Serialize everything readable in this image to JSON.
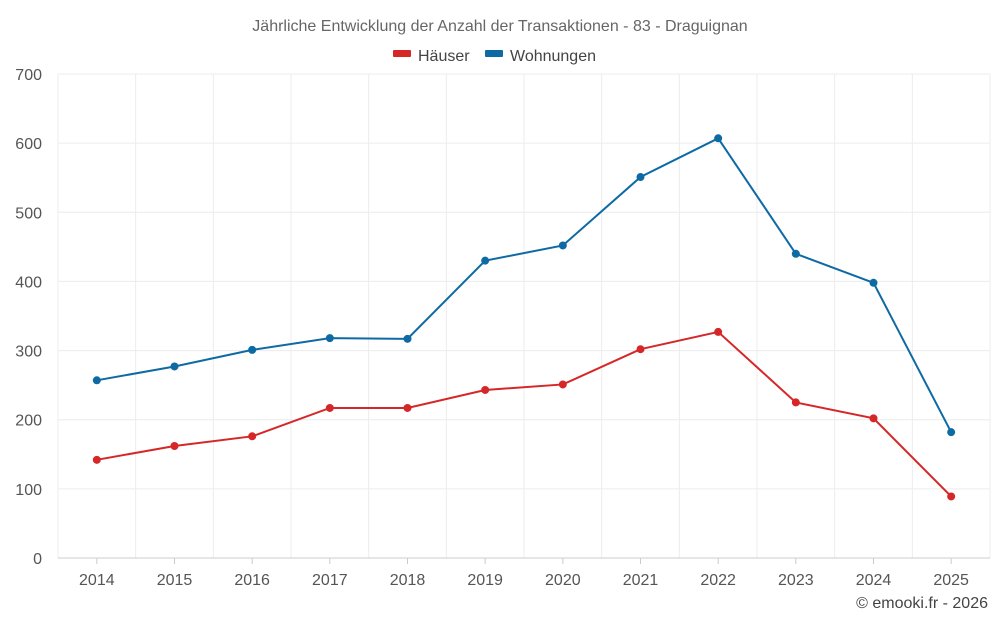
{
  "chart_data": {
    "type": "line",
    "title": "Jährliche Entwicklung der Anzahl der Transaktionen - 83 - Draguignan",
    "categories": [
      "2014",
      "2015",
      "2016",
      "2017",
      "2018",
      "2019",
      "2020",
      "2021",
      "2022",
      "2023",
      "2024",
      "2025"
    ],
    "y_ticks": [
      "0",
      "100",
      "200",
      "300",
      "400",
      "500",
      "600",
      "700"
    ],
    "ylim": [
      0,
      700
    ],
    "grid": true,
    "legend_position": "top-center",
    "series": [
      {
        "name": "Häuser",
        "color": "#d62728",
        "values": [
          142,
          162,
          176,
          217,
          217,
          243,
          251,
          302,
          327,
          225,
          202,
          89
        ]
      },
      {
        "name": "Wohnungen",
        "color": "#0e6aa3",
        "values": [
          257,
          277,
          301,
          318,
          317,
          430,
          452,
          551,
          607,
          440,
          398,
          182
        ]
      }
    ]
  },
  "credit": "© emooki.fr - 2026"
}
